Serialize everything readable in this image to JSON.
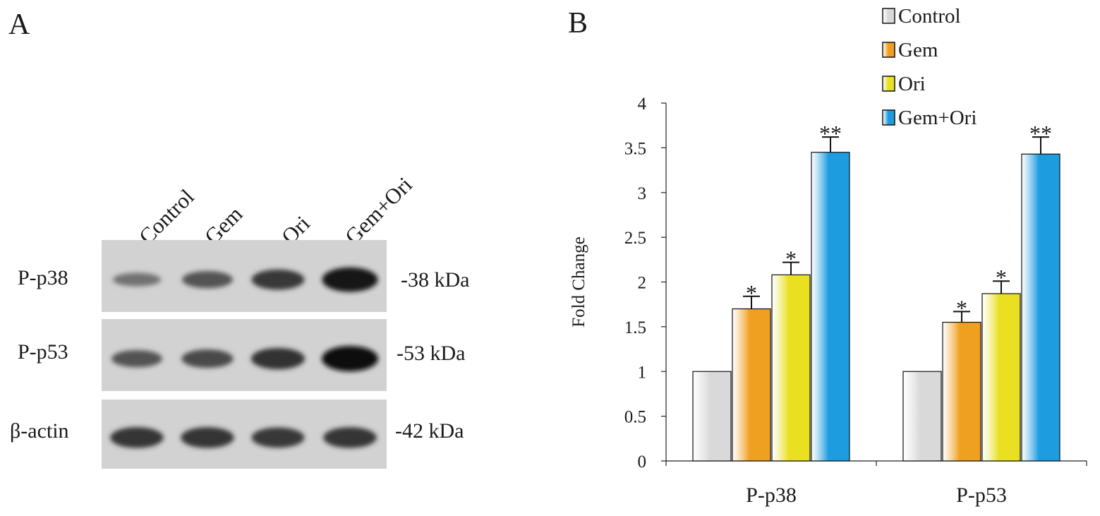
{
  "panel_a": {
    "letter": "A",
    "lanes": [
      "Control",
      "Gem",
      "Ori",
      "Gem+Ori"
    ],
    "rows": [
      {
        "label": "P-p38",
        "kda": "-38 kDa",
        "intensities": [
          0.35,
          0.55,
          0.72,
          0.95
        ]
      },
      {
        "label": "P-p53",
        "kda": "-53 kDa",
        "intensities": [
          0.55,
          0.62,
          0.78,
          1.0
        ]
      },
      {
        "label": "β-actin",
        "kda": "-42 kDa",
        "intensities": [
          0.75,
          0.75,
          0.72,
          0.75
        ]
      }
    ]
  },
  "panel_b": {
    "letter": "B"
  },
  "chart_data": {
    "type": "bar",
    "categories": [
      "P-p38",
      "P-p53"
    ],
    "series": [
      {
        "name": "Control",
        "values": [
          1.0,
          1.0
        ],
        "errors": [
          0,
          0
        ],
        "significance": [
          "",
          ""
        ],
        "color": "#d9d9d9"
      },
      {
        "name": "Gem",
        "values": [
          1.7,
          1.55
        ],
        "errors": [
          0.14,
          0.12
        ],
        "significance": [
          "*",
          "*"
        ],
        "color": "#f0a020"
      },
      {
        "name": "Ori",
        "values": [
          2.08,
          1.87
        ],
        "errors": [
          0.14,
          0.14
        ],
        "significance": [
          "*",
          "*"
        ],
        "color": "#e8e020"
      },
      {
        "name": "Gem+Ori",
        "values": [
          3.45,
          3.43
        ],
        "errors": [
          0.17,
          0.19
        ],
        "significance": [
          "**",
          "**"
        ],
        "color": "#1e9ce0"
      }
    ],
    "title": "",
    "xlabel": "",
    "ylabel": "Fold Change",
    "ylim": [
      0,
      4
    ],
    "yticks": [
      "0",
      "0.5",
      "1",
      "1.5",
      "2",
      "2.5",
      "3",
      "3.5",
      "4"
    ],
    "grid": false,
    "legend": "top-right"
  }
}
